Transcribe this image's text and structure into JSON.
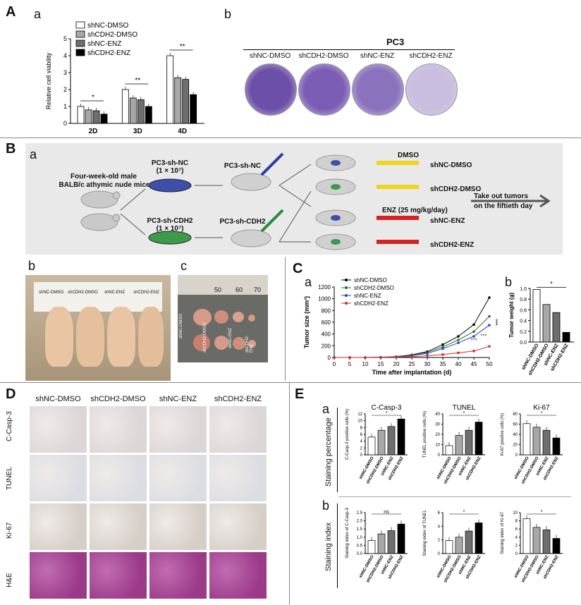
{
  "panelA": {
    "letter": "A",
    "sub_a": "a",
    "sub_b": "b",
    "chart_a": {
      "type": "bar",
      "ylabel": "Relative cell viability",
      "categories": [
        "2D",
        "3D",
        "4D"
      ],
      "ylim": [
        0,
        5
      ],
      "yticks": [
        "0",
        "1",
        "2",
        "3",
        "4",
        "5"
      ],
      "series": [
        {
          "name": "shNC-DMSO",
          "color": "#ffffff",
          "values": [
            1.0,
            2.0,
            4.0
          ]
        },
        {
          "name": "shCDH2-DMSO",
          "color": "#a8a8a8",
          "values": [
            0.8,
            1.5,
            2.7
          ]
        },
        {
          "name": "shNC-ENZ",
          "color": "#6e6e6e",
          "values": [
            0.75,
            1.4,
            2.6
          ]
        },
        {
          "name": "shCDH2-ENZ",
          "color": "#000000",
          "values": [
            0.55,
            1.0,
            1.7
          ]
        }
      ],
      "sig": [
        "*",
        "**",
        "**"
      ]
    },
    "pc3_title": "PC3",
    "dish_labels": [
      "shNC-DMSO",
      "shCDH2-DMSO",
      "shNC-ENZ",
      "shCDH2-ENZ"
    ]
  },
  "panelB": {
    "letter": "B",
    "sub_a": "a",
    "mice_label_1": "Four-week-old male",
    "mice_label_2": "BALB/c athymic nude mice",
    "nc_label": "PC3-sh-NC",
    "nc_count": "(1 × 10⁷)",
    "cdh2_label": "PC3-sh-CDH2",
    "cdh2_count": "(1 × 10⁷)",
    "inj_nc": "PC3-sh-NC",
    "inj_cdh2": "PC3-sh-CDH2",
    "dmso": "DMSO",
    "enz": "ENZ (25 mg/kg/day)",
    "groups": [
      "shNC-DMSO",
      "shCDH2-DMSO",
      "shNC-ENZ",
      "shCDH2-ENZ"
    ],
    "take_out_1": "Take out tumors",
    "take_out_2": "on the fiftieth day",
    "sub_b": "b",
    "sub_c": "c",
    "photo_labels": [
      "shNC-DMSO",
      "shCDH2-DMSO",
      "shNC-ENZ",
      "shCDH2-ENZ"
    ],
    "ruler_nums": [
      "50",
      "60",
      "70"
    ],
    "tumor_labels": [
      "shNC-DMSO",
      "shCDH2-DMSO",
      "shNC-ENZ",
      "shCDH2-ENZ"
    ]
  },
  "panelC": {
    "letter": "C",
    "sub_a": "a",
    "sub_b": "b",
    "chart_a": {
      "type": "line",
      "xlabel": "Time after implantation (d)",
      "ylabel": "Tumor size (mm³)",
      "x": [
        0,
        5,
        10,
        15,
        20,
        25,
        30,
        35,
        40,
        45,
        50
      ],
      "ylim": [
        0,
        1200
      ],
      "yticks": [
        "0",
        "200",
        "400",
        "600",
        "800",
        "1000",
        "1200"
      ],
      "series": [
        {
          "name": "shNC-DMSO",
          "color": "#000000",
          "values": [
            0,
            0,
            0,
            5,
            15,
            45,
            100,
            220,
            360,
            560,
            1020
          ]
        },
        {
          "name": "shCDH2-DMSO",
          "color": "#1e7d1e",
          "values": [
            0,
            0,
            0,
            4,
            12,
            38,
            85,
            180,
            300,
            440,
            700
          ]
        },
        {
          "name": "shNC-ENZ",
          "color": "#2a3fcf",
          "values": [
            0,
            0,
            0,
            4,
            10,
            32,
            70,
            150,
            250,
            360,
            550
          ]
        },
        {
          "name": "shCDH2-ENZ",
          "color": "#d42a2a",
          "values": [
            0,
            0,
            0,
            2,
            6,
            14,
            30,
            50,
            80,
            110,
            190
          ]
        }
      ],
      "sig": [
        "***",
        "***",
        "***"
      ]
    },
    "chart_b": {
      "type": "bar",
      "ylabel": "Tumor weight (g)",
      "categories": [
        "shNC-DMSO",
        "shCDH2-DMSO",
        "shNC-ENZ",
        "shCDH2-ENZ"
      ],
      "ylim": [
        0,
        1.0
      ],
      "yticks": [
        "0.0",
        "0.2",
        "0.4",
        "0.6",
        "0.8",
        "1.0"
      ],
      "values": [
        0.98,
        0.7,
        0.55,
        0.18
      ],
      "colors": [
        "#ffffff",
        "#a8a8a8",
        "#6e6e6e",
        "#000000"
      ],
      "sig": "*"
    }
  },
  "panelD": {
    "letter": "D",
    "cols": [
      "shNC-DMSO",
      "shCDH2-DMSO",
      "shNC-ENZ",
      "shCDH2-ENZ"
    ],
    "rows": [
      "C-Casp-3",
      "TUNEL",
      "Ki-67",
      "H&E"
    ]
  },
  "panelE": {
    "letter": "E",
    "sub_a": "a",
    "sub_b": "b",
    "row_a_label": "Staining percentage",
    "row_b_label": "Staining index",
    "categories": [
      "shNC-DMSO",
      "shCDH2-DMSO",
      "shNC-ENZ",
      "shCDH2-ENZ"
    ],
    "colors": [
      "#ffffff",
      "#a8a8a8",
      "#6e6e6e",
      "#000000"
    ],
    "chart_data": [
      {
        "type": "bar",
        "title": "C-Casp-3",
        "ylabel": "C-Casp-3 positive cells (%)",
        "ylim": [
          0,
          12
        ],
        "yticks": [
          "0",
          "2",
          "4",
          "6",
          "8",
          "10",
          "12"
        ],
        "values": [
          5.2,
          7.2,
          8.3,
          10.5
        ],
        "sig": "*"
      },
      {
        "type": "bar",
        "title": "TUNEL",
        "ylabel": "TUNEL positive cells (%)",
        "ylim": [
          0,
          40
        ],
        "yticks": [
          "0",
          "10",
          "20",
          "30",
          "40"
        ],
        "values": [
          9,
          19,
          24,
          32
        ],
        "sig": "*"
      },
      {
        "type": "bar",
        "title": "Ki-67",
        "ylabel": "Ki-67 positive cells (%)",
        "ylim": [
          0,
          80
        ],
        "yticks": [
          "0",
          "20",
          "40",
          "60",
          "80"
        ],
        "values": [
          61,
          54,
          48,
          33
        ],
        "sig": "*"
      },
      {
        "type": "bar",
        "ylabel": "Staining index of C-Casp-3",
        "ylim": [
          0,
          2.5
        ],
        "yticks": [
          "0.0",
          "0.5",
          "1.0",
          "1.5",
          "2.0",
          "2.5"
        ],
        "values": [
          0.8,
          1.2,
          1.4,
          1.8
        ],
        "sig": "ns"
      },
      {
        "type": "bar",
        "ylabel": "Staining index of TUNEL",
        "ylim": [
          0,
          6
        ],
        "yticks": [
          "0",
          "2",
          "4",
          "6"
        ],
        "values": [
          1.9,
          2.4,
          3.3,
          4.5
        ],
        "sig": "*"
      },
      {
        "type": "bar",
        "ylabel": "Staining index of Ki-67",
        "ylim": [
          0,
          10
        ],
        "yticks": [
          "0",
          "2",
          "4",
          "6",
          "8",
          "10"
        ],
        "values": [
          8.5,
          6.4,
          5.8,
          3.7
        ],
        "sig": "*"
      }
    ]
  }
}
